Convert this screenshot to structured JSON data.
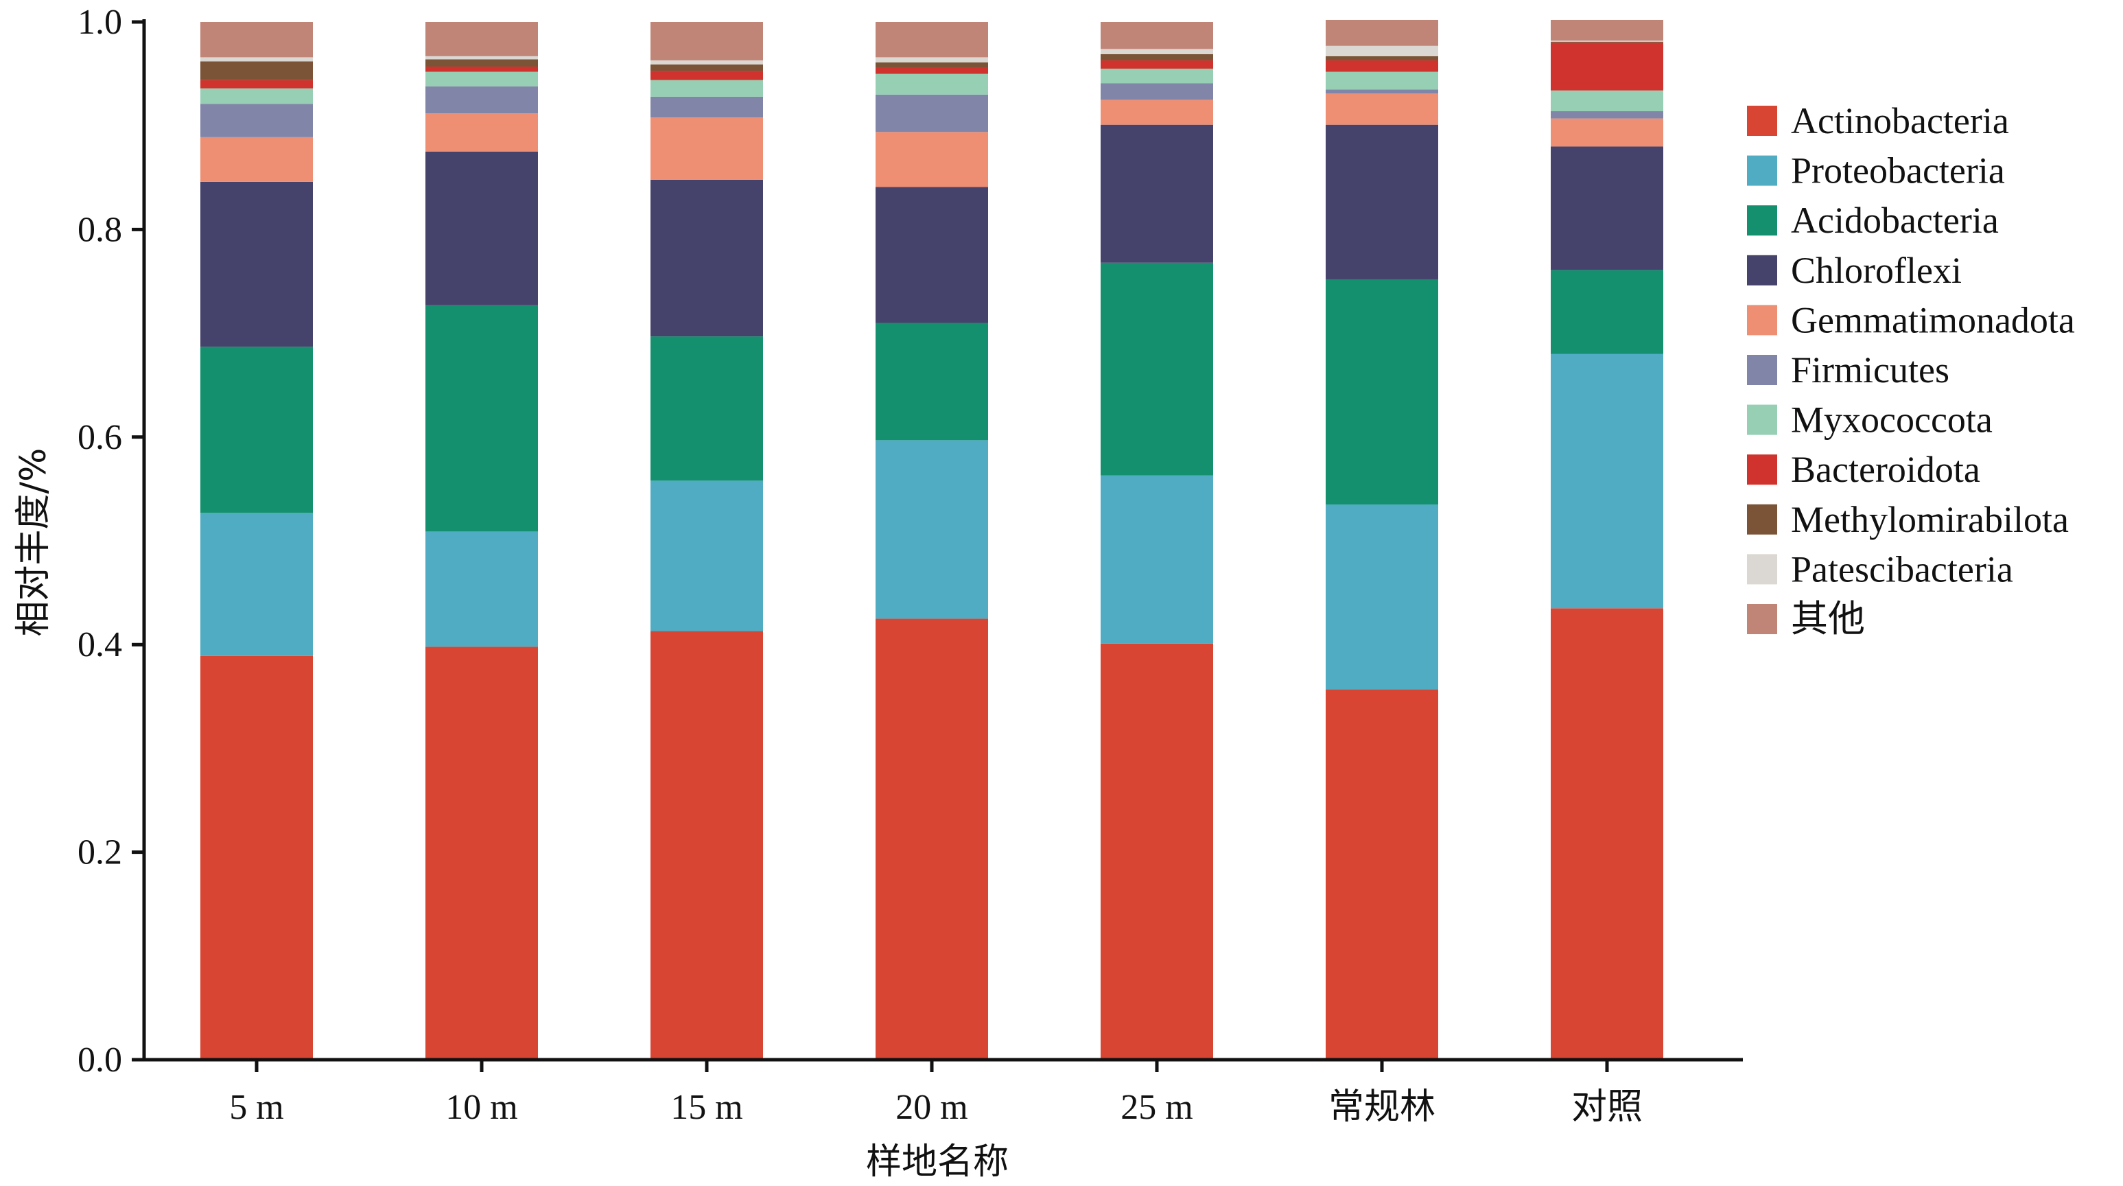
{
  "chart_data": {
    "type": "bar",
    "stacked": true,
    "xlabel": "样地名称",
    "ylabel": "相对丰度/%",
    "ylim": [
      0,
      1.0
    ],
    "yticks": [
      "0.0",
      "0.2",
      "0.4",
      "0.6",
      "0.8",
      "1.0"
    ],
    "categories": [
      "5 m",
      "10 m",
      "15 m",
      "20 m",
      "25 m",
      "常规林",
      "对照"
    ],
    "legend_position": "right",
    "series": [
      {
        "name": "Actinobacteria",
        "color": "#d94533",
        "values": [
          0.389,
          0.398,
          0.413,
          0.425,
          0.401,
          0.357,
          0.435
        ]
      },
      {
        "name": "Proteobacteria",
        "color": "#50acc2",
        "values": [
          0.138,
          0.111,
          0.145,
          0.172,
          0.162,
          0.178,
          0.245
        ]
      },
      {
        "name": "Acidobacteria",
        "color": "#14906e",
        "values": [
          0.16,
          0.218,
          0.139,
          0.113,
          0.205,
          0.217,
          0.081
        ]
      },
      {
        "name": "Chloroflexi",
        "color": "#45436b",
        "values": [
          0.159,
          0.148,
          0.151,
          0.131,
          0.133,
          0.149,
          0.119
        ]
      },
      {
        "name": "Gemmatimonadota",
        "color": "#ee8f74",
        "values": [
          0.043,
          0.037,
          0.06,
          0.053,
          0.024,
          0.03,
          0.027
        ]
      },
      {
        "name": "Firmicutes",
        "color": "#8185a7",
        "values": [
          0.032,
          0.026,
          0.02,
          0.036,
          0.016,
          0.004,
          0.007
        ]
      },
      {
        "name": "Myxococcota",
        "color": "#96cfb4",
        "values": [
          0.015,
          0.014,
          0.016,
          0.02,
          0.014,
          0.017,
          0.02
        ]
      },
      {
        "name": "Bacteroidota",
        "color": "#d0332d",
        "values": [
          0.008,
          0.005,
          0.009,
          0.006,
          0.008,
          0.011,
          0.046
        ]
      },
      {
        "name": "Methylomirabilota",
        "color": "#7b5337",
        "values": [
          0.018,
          0.007,
          0.006,
          0.005,
          0.006,
          0.004,
          0.001
        ]
      },
      {
        "name": "Patescibacteria",
        "color": "#dbd7d2",
        "values": [
          0.004,
          0.003,
          0.004,
          0.005,
          0.005,
          0.01,
          0.001
        ]
      },
      {
        "name": "其他",
        "color": "#c08577",
        "values": [
          0.034,
          0.033,
          0.037,
          0.034,
          0.026,
          0.025,
          0.02
        ]
      }
    ]
  }
}
